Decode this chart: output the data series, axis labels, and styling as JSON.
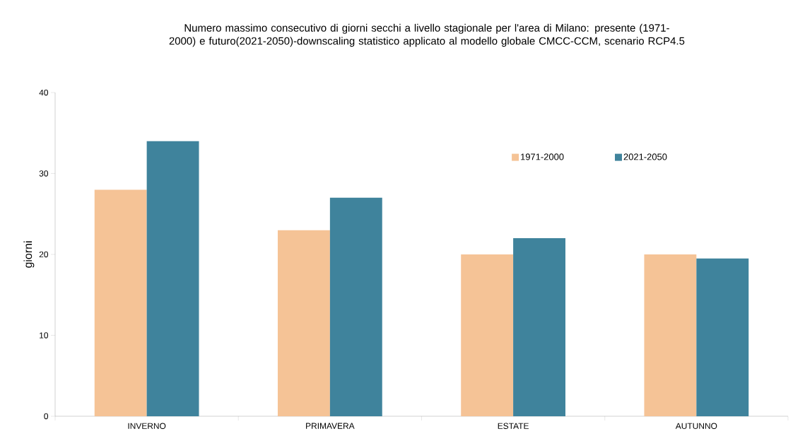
{
  "chart_data": {
    "type": "bar",
    "title": "Numero massimo consecutivo di giorni secchi a livello stagionale per l'area di Milano: presente (1971-2000) e futuro(2021-2050)-downscaling statistico applicato al modello globale CMCC-CCM, scenario RCP4.5",
    "ylabel": "giorni",
    "categories": [
      "INVERNO",
      "PRIMAVERA",
      "ESTATE",
      "AUTUNNO"
    ],
    "series": [
      {
        "name": "1971-2000",
        "color": "#f5c396",
        "values": [
          28,
          23,
          20,
          20
        ]
      },
      {
        "name": "2021-2050",
        "color": "#3f839c",
        "values": [
          34,
          27,
          22,
          19.5
        ]
      }
    ],
    "ylim": [
      0,
      40
    ],
    "yticks": [
      0,
      10,
      20,
      30,
      40
    ],
    "grid": false,
    "legend": "top right"
  }
}
